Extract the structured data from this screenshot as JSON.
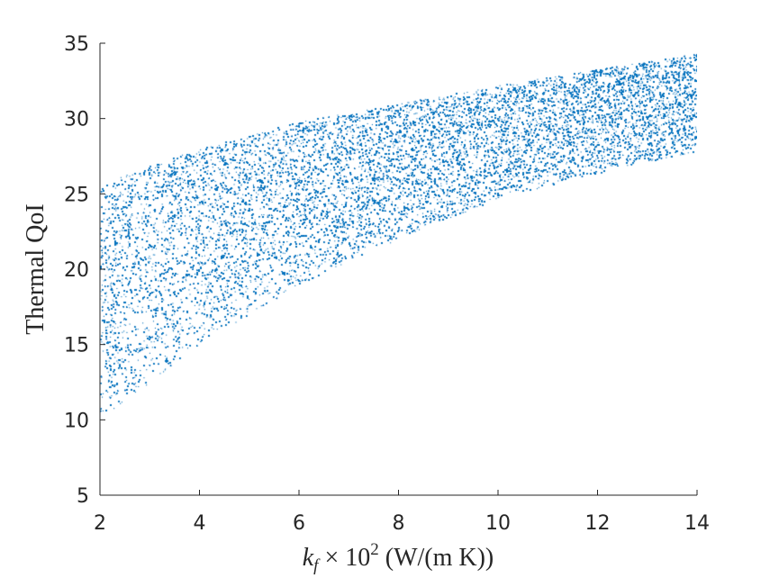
{
  "chart_data": {
    "type": "scatter",
    "title": "",
    "xlabel": "k_f × 10² (W/(m K))",
    "xlabel_parts": {
      "base": "k",
      "sub": "f",
      "times": " × 10",
      "sup": "2",
      "unit": " (W/(m K))"
    },
    "ylabel": "Thermal QoI",
    "xlim": [
      2,
      14
    ],
    "ylim": [
      5,
      35
    ],
    "xticks": [
      "2",
      "4",
      "6",
      "8",
      "10",
      "12",
      "14"
    ],
    "yticks": [
      "5",
      "10",
      "15",
      "20",
      "25",
      "30",
      "35"
    ],
    "grid": false,
    "legend": "none",
    "marker_color": "#0072BD",
    "point_count": 90000,
    "upper_envelope": {
      "x": [
        2,
        3,
        4,
        6,
        8,
        10,
        12,
        14
      ],
      "y": [
        25.5,
        27.0,
        28.0,
        29.8,
        31.0,
        32.2,
        33.3,
        34.3
      ]
    },
    "lower_envelope": {
      "x": [
        2,
        3,
        4,
        6,
        8,
        10,
        12,
        14
      ],
      "y": [
        10.0,
        12.5,
        15.0,
        19.0,
        22.0,
        24.7,
        26.4,
        27.8
      ]
    }
  }
}
